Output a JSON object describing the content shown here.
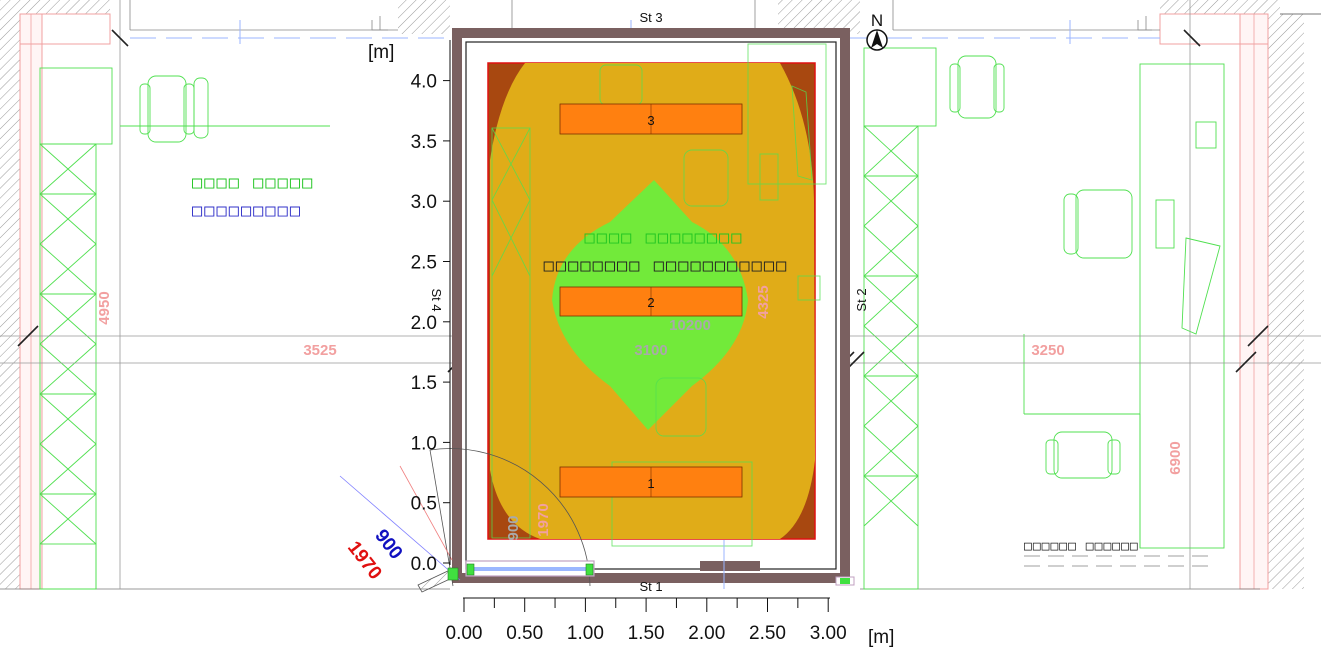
{
  "plan": {
    "y_axis": {
      "unit": "[m]",
      "ticks": [
        "0.0",
        "0.5",
        "1.0",
        "1.5",
        "2.0",
        "2.5",
        "3.0",
        "3.5",
        "4.0"
      ]
    },
    "x_axis": {
      "unit": "[m]",
      "ticks": [
        "0.00",
        "0.50",
        "1.00",
        "1.50",
        "2.00",
        "2.50",
        "3.00"
      ]
    },
    "walls": {
      "s1": "St 1",
      "s2": "St 2",
      "s3": "St 3",
      "s4": "St 4"
    },
    "compass": {
      "letter": "N"
    },
    "dimensions": {
      "left_width": "3525",
      "left_height": "4950",
      "center_width": "3100",
      "center_height": "4325",
      "center_area": "10200",
      "right_width": "3250",
      "right_height": "6900",
      "door_red": "1970",
      "door_blue": "900",
      "door_red_small": "1970",
      "door_grey_small": "900"
    },
    "room_labels": {
      "left_green": "□□□□ □□□□□",
      "left_blue": "□□□□□□□□□",
      "center_green": "□□□□ □□□□□□□□",
      "center_dark": "□□□□□□□□ □□□□□□□□□□□",
      "right_dark": "□□□□□□ □□□□□□"
    },
    "luminaires": [
      "1",
      "2",
      "3"
    ],
    "colors": {
      "outer_zone": "#a84810",
      "mid_zone": "#e0ac18",
      "inner_zone": "#72ea3a",
      "luminaire": "#ff8010",
      "wall": "#7a6060",
      "furniture": "#50e050"
    }
  }
}
